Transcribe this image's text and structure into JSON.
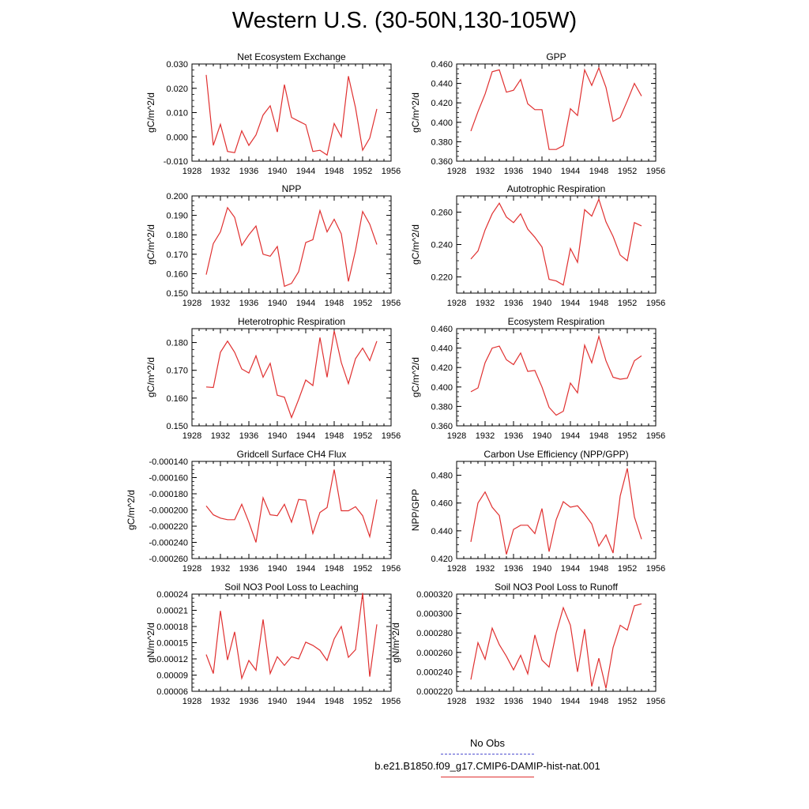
{
  "title": "Western U.S. (30-50N,130-105W)",
  "legend": {
    "obs_label": "No Obs",
    "obs_color": "#5050d0",
    "model_label": "b.e21.B1850.f09_g17.CMIP6-DAMIP-hist-nat.001",
    "model_color": "#e03030"
  },
  "chart_data": [
    {
      "type": "line",
      "title": "Net Ecosystem Exchange",
      "ylabel": "gC/m^2/d",
      "xlim": [
        1928,
        1956
      ],
      "xticks": [
        "1928",
        "1932",
        "1936",
        "1940",
        "1944",
        "1948",
        "1952",
        "1956"
      ],
      "ylim": [
        -0.01,
        0.03
      ],
      "yticks": [
        "-0.010",
        "0.000",
        "0.010",
        "0.020",
        "0.030"
      ],
      "x": [
        1930,
        1931,
        1932,
        1933,
        1934,
        1935,
        1936,
        1937,
        1938,
        1939,
        1940,
        1941,
        1942,
        1943,
        1944,
        1945,
        1946,
        1947,
        1948,
        1949,
        1950,
        1951,
        1952,
        1953,
        1954
      ],
      "series": [
        {
          "values": [
            0.0255,
            -0.0035,
            0.0052,
            -0.006,
            -0.0065,
            0.0025,
            -0.0035,
            0.0008,
            0.009,
            0.0128,
            0.002,
            0.0215,
            0.008,
            0.0065,
            0.005,
            -0.006,
            -0.0055,
            -0.0075,
            0.0055,
            0.0,
            0.025,
            0.012,
            -0.0055,
            -0.0005,
            0.0115
          ]
        }
      ]
    },
    {
      "type": "line",
      "title": "GPP",
      "ylabel": "gC/m^2/d",
      "xlim": [
        1928,
        1956
      ],
      "xticks": [
        "1928",
        "1932",
        "1936",
        "1940",
        "1944",
        "1948",
        "1952",
        "1956"
      ],
      "ylim": [
        0.36,
        0.46
      ],
      "yticks": [
        "0.360",
        "0.380",
        "0.400",
        "0.420",
        "0.440",
        "0.460"
      ],
      "x": [
        1930,
        1931,
        1932,
        1933,
        1934,
        1935,
        1936,
        1937,
        1938,
        1939,
        1940,
        1941,
        1942,
        1943,
        1944,
        1945,
        1946,
        1947,
        1948,
        1949,
        1950,
        1951,
        1952,
        1953,
        1954
      ],
      "series": [
        {
          "values": [
            0.391,
            0.411,
            0.429,
            0.452,
            0.454,
            0.431,
            0.433,
            0.444,
            0.419,
            0.413,
            0.413,
            0.372,
            0.372,
            0.376,
            0.414,
            0.407,
            0.454,
            0.438,
            0.456,
            0.436,
            0.401,
            0.405,
            0.422,
            0.44,
            0.427
          ]
        }
      ]
    },
    {
      "type": "line",
      "title": "NPP",
      "ylabel": "gC/m^2/d",
      "xlim": [
        1928,
        1956
      ],
      "xticks": [
        "1928",
        "1932",
        "1936",
        "1940",
        "1944",
        "1948",
        "1952",
        "1956"
      ],
      "ylim": [
        0.15,
        0.2
      ],
      "yticks": [
        "0.150",
        "0.160",
        "0.170",
        "0.180",
        "0.190",
        "0.200"
      ],
      "x": [
        1930,
        1931,
        1932,
        1933,
        1934,
        1935,
        1936,
        1937,
        1938,
        1939,
        1940,
        1941,
        1942,
        1943,
        1944,
        1945,
        1946,
        1947,
        1948,
        1949,
        1950,
        1951,
        1952,
        1953,
        1954
      ],
      "series": [
        {
          "values": [
            0.1595,
            0.1755,
            0.1815,
            0.194,
            0.189,
            0.1745,
            0.18,
            0.1845,
            0.17,
            0.169,
            0.174,
            0.1535,
            0.155,
            0.161,
            0.176,
            0.1775,
            0.1925,
            0.1815,
            0.188,
            0.1805,
            0.156,
            0.172,
            0.192,
            0.1855,
            0.175
          ]
        }
      ]
    },
    {
      "type": "line",
      "title": "Autotrophic Respiration",
      "ylabel": "gC/m^2/d",
      "xlim": [
        1928,
        1956
      ],
      "xticks": [
        "1928",
        "1932",
        "1936",
        "1940",
        "1944",
        "1948",
        "1952",
        "1956"
      ],
      "ylim": [
        0.21,
        0.27
      ],
      "yticks": [
        "0.220",
        "0.240",
        "0.260"
      ],
      "x": [
        1930,
        1931,
        1932,
        1933,
        1934,
        1935,
        1936,
        1937,
        1938,
        1939,
        1940,
        1941,
        1942,
        1943,
        1944,
        1945,
        1946,
        1947,
        1948,
        1949,
        1950,
        1951,
        1952,
        1953,
        1954
      ],
      "series": [
        {
          "values": [
            0.231,
            0.236,
            0.249,
            0.259,
            0.2655,
            0.257,
            0.2535,
            0.259,
            0.2495,
            0.2445,
            0.2385,
            0.2185,
            0.2175,
            0.215,
            0.2375,
            0.229,
            0.2615,
            0.2575,
            0.268,
            0.254,
            0.245,
            0.2335,
            0.23,
            0.2535,
            0.2515
          ]
        }
      ]
    },
    {
      "type": "line",
      "title": "Heterotrophic Respiration",
      "ylabel": "gC/m^2/d",
      "xlim": [
        1928,
        1956
      ],
      "xticks": [
        "1928",
        "1932",
        "1936",
        "1940",
        "1944",
        "1948",
        "1952",
        "1956"
      ],
      "ylim": [
        0.15,
        0.185
      ],
      "yticks": [
        "0.150",
        "0.160",
        "0.170",
        "0.180"
      ],
      "x": [
        1930,
        1931,
        1932,
        1933,
        1934,
        1935,
        1936,
        1937,
        1938,
        1939,
        1940,
        1941,
        1942,
        1943,
        1944,
        1945,
        1946,
        1947,
        1948,
        1949,
        1950,
        1951,
        1952,
        1953,
        1954
      ],
      "series": [
        {
          "values": [
            0.164,
            0.1638,
            0.1765,
            0.1805,
            0.1765,
            0.1705,
            0.169,
            0.1752,
            0.1675,
            0.1725,
            0.161,
            0.1603,
            0.153,
            0.1595,
            0.1665,
            0.1645,
            0.1818,
            0.1675,
            0.1842,
            0.1728,
            0.1652,
            0.1742,
            0.178,
            0.1735,
            0.1805
          ]
        }
      ]
    },
    {
      "type": "line",
      "title": "Ecosystem Respiration",
      "ylabel": "gC/m^2/d",
      "xlim": [
        1928,
        1956
      ],
      "xticks": [
        "1928",
        "1932",
        "1936",
        "1940",
        "1944",
        "1948",
        "1952",
        "1956"
      ],
      "ylim": [
        0.36,
        0.46
      ],
      "yticks": [
        "0.360",
        "0.380",
        "0.400",
        "0.420",
        "0.440",
        "0.460"
      ],
      "x": [
        1930,
        1931,
        1932,
        1933,
        1934,
        1935,
        1936,
        1937,
        1938,
        1939,
        1940,
        1941,
        1942,
        1943,
        1944,
        1945,
        1946,
        1947,
        1948,
        1949,
        1950,
        1951,
        1952,
        1953,
        1954
      ],
      "series": [
        {
          "values": [
            0.395,
            0.399,
            0.425,
            0.44,
            0.442,
            0.428,
            0.423,
            0.435,
            0.416,
            0.417,
            0.4,
            0.379,
            0.371,
            0.375,
            0.404,
            0.394,
            0.443,
            0.425,
            0.452,
            0.427,
            0.41,
            0.408,
            0.409,
            0.427,
            0.432
          ]
        }
      ]
    },
    {
      "type": "line",
      "title": "Gridcell Surface CH4 Flux",
      "ylabel": "gC/m^2/d",
      "xlim": [
        1928,
        1956
      ],
      "xticks": [
        "1928",
        "1932",
        "1936",
        "1940",
        "1944",
        "1948",
        "1952",
        "1956"
      ],
      "ylim": [
        -0.00026,
        -0.00014
      ],
      "yticks": [
        "-0.000260",
        "-0.000240",
        "-0.000220",
        "-0.000200",
        "-0.000180",
        "-0.000160",
        "-0.000140"
      ],
      "x": [
        1930,
        1931,
        1932,
        1933,
        1934,
        1935,
        1936,
        1937,
        1938,
        1939,
        1940,
        1941,
        1942,
        1943,
        1944,
        1945,
        1946,
        1947,
        1948,
        1949,
        1950,
        1951,
        1952,
        1953,
        1954
      ],
      "series": [
        {
          "values": [
            -0.000195,
            -0.000206,
            -0.00021,
            -0.000212,
            -0.000212,
            -0.000193,
            -0.000215,
            -0.00024,
            -0.000185,
            -0.000206,
            -0.000207,
            -0.000193,
            -0.000215,
            -0.000187,
            -0.000188,
            -0.000229,
            -0.000203,
            -0.000197,
            -0.00015,
            -0.000201,
            -0.000201,
            -0.000196,
            -0.000207,
            -0.000233,
            -0.000187
          ]
        }
      ]
    },
    {
      "type": "line",
      "title": "Carbon Use Efficiency (NPP/GPP)",
      "ylabel": "NPP/GPP",
      "xlim": [
        1928,
        1956
      ],
      "xticks": [
        "1928",
        "1932",
        "1936",
        "1940",
        "1944",
        "1948",
        "1952",
        "1956"
      ],
      "ylim": [
        0.42,
        0.49
      ],
      "yticks": [
        "0.420",
        "0.440",
        "0.460",
        "0.480"
      ],
      "x": [
        1930,
        1931,
        1932,
        1933,
        1934,
        1935,
        1936,
        1937,
        1938,
        1939,
        1940,
        1941,
        1942,
        1943,
        1944,
        1945,
        1946,
        1947,
        1948,
        1949,
        1950,
        1951,
        1952,
        1953,
        1954
      ],
      "series": [
        {
          "values": [
            0.432,
            0.46,
            0.468,
            0.457,
            0.451,
            0.423,
            0.441,
            0.444,
            0.444,
            0.438,
            0.456,
            0.425,
            0.448,
            0.461,
            0.457,
            0.458,
            0.452,
            0.445,
            0.429,
            0.437,
            0.424,
            0.465,
            0.485,
            0.45,
            0.434
          ]
        }
      ]
    },
    {
      "type": "line",
      "title": "Soil NO3 Pool Loss to Leaching",
      "ylabel": "gN/m^2/d",
      "xlim": [
        1928,
        1956
      ],
      "xticks": [
        "1928",
        "1932",
        "1936",
        "1940",
        "1944",
        "1948",
        "1952",
        "1956"
      ],
      "ylim": [
        6e-05,
        0.00024
      ],
      "yticks": [
        "0.00006",
        "0.00009",
        "0.00012",
        "0.00015",
        "0.00018",
        "0.00021",
        "0.00024"
      ],
      "x": [
        1930,
        1931,
        1932,
        1933,
        1934,
        1935,
        1936,
        1937,
        1938,
        1939,
        1940,
        1941,
        1942,
        1943,
        1944,
        1945,
        1946,
        1947,
        1948,
        1949,
        1950,
        1951,
        1952,
        1953,
        1954
      ],
      "series": [
        {
          "values": [
            0.000128,
            9.3e-05,
            0.000209,
            0.000118,
            0.00017,
            8.4e-05,
            0.000117,
            9.9e-05,
            0.000193,
            9.3e-05,
            0.000124,
            0.000108,
            0.000124,
            0.00012,
            0.000151,
            0.000145,
            0.000136,
            0.000117,
            0.000157,
            0.00018,
            0.000123,
            0.000137,
            0.000242,
            8.7e-05,
            0.000184
          ]
        }
      ]
    },
    {
      "type": "line",
      "title": "Soil NO3 Pool Loss to Runoff",
      "ylabel": "gN/m^2/d",
      "xlim": [
        1928,
        1956
      ],
      "xticks": [
        "1928",
        "1932",
        "1936",
        "1940",
        "1944",
        "1948",
        "1952",
        "1956"
      ],
      "ylim": [
        0.00022,
        0.00032
      ],
      "yticks": [
        "0.000220",
        "0.000240",
        "0.000260",
        "0.000280",
        "0.000300",
        "0.000320"
      ],
      "x": [
        1930,
        1931,
        1932,
        1933,
        1934,
        1935,
        1936,
        1937,
        1938,
        1939,
        1940,
        1941,
        1942,
        1943,
        1944,
        1945,
        1946,
        1947,
        1948,
        1949,
        1950,
        1951,
        1952,
        1953,
        1954
      ],
      "series": [
        {
          "values": [
            0.000232,
            0.00027,
            0.000253,
            0.000285,
            0.000268,
            0.000256,
            0.000242,
            0.000257,
            0.000238,
            0.000278,
            0.000252,
            0.000245,
            0.00028,
            0.000306,
            0.000288,
            0.00024,
            0.000284,
            0.000225,
            0.000254,
            0.000223,
            0.000265,
            0.000288,
            0.000283,
            0.000308,
            0.00031
          ]
        }
      ]
    }
  ]
}
